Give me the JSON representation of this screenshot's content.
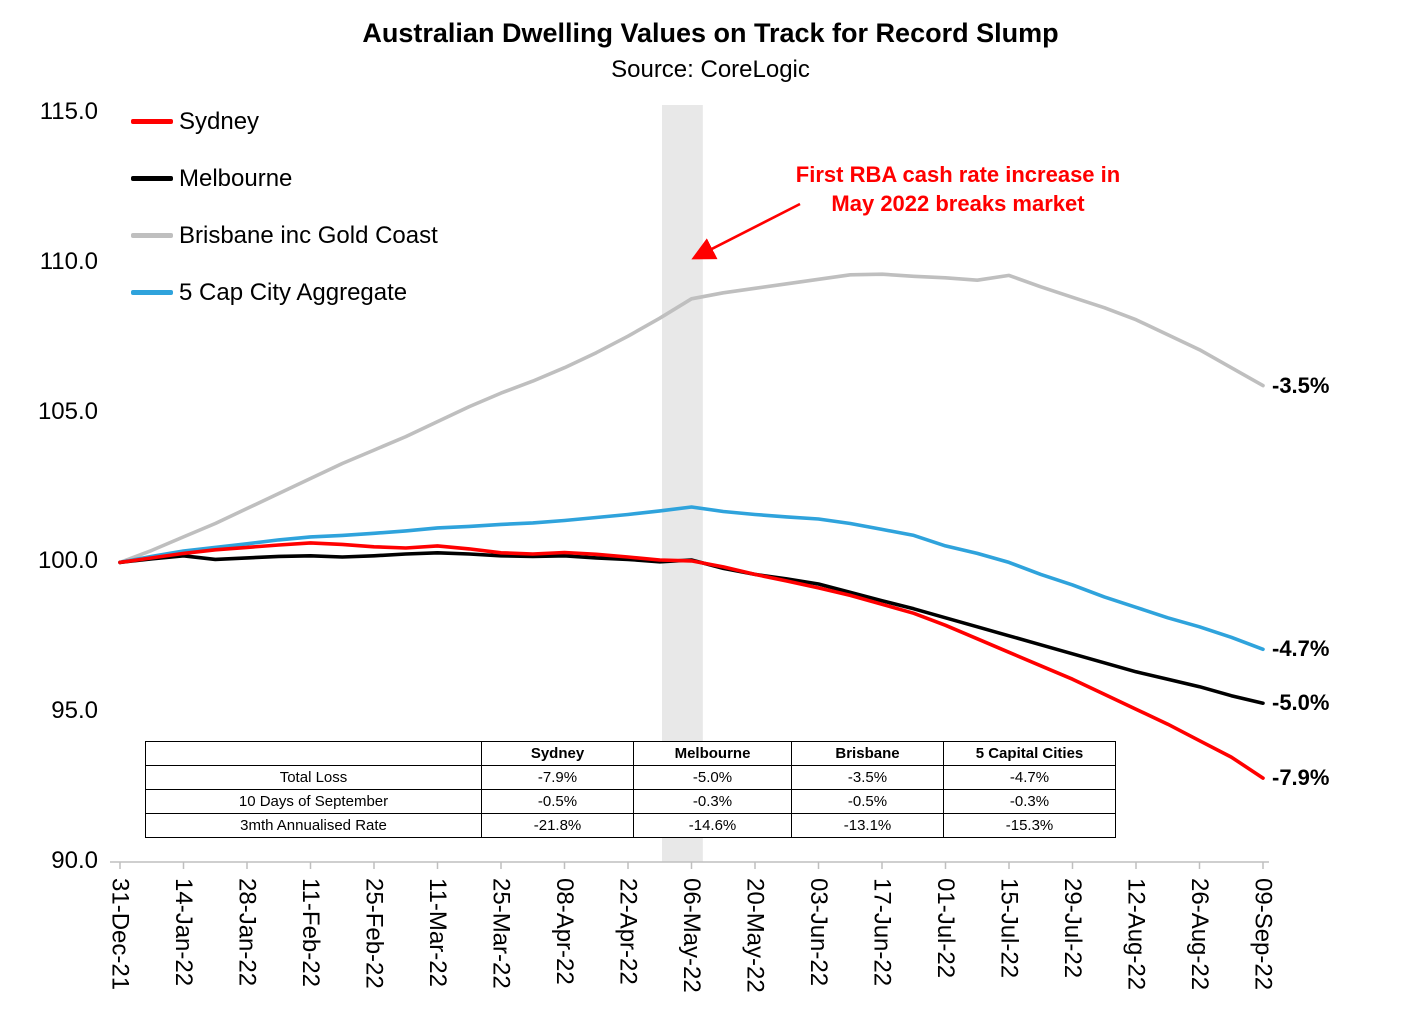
{
  "chart_data": {
    "type": "line",
    "title": "Australian Dwelling Values on Track for Record Slump",
    "source": "Source: CoreLogic",
    "annotation": {
      "line1": "First RBA cash rate increase in",
      "line2": "May 2022 breaks market",
      "color": "#FF0000"
    },
    "ylim": [
      90,
      115
    ],
    "y_ticks": [
      115,
      110,
      105,
      100,
      95,
      90
    ],
    "y_tick_labels": [
      "115.0",
      "110.0",
      "105.0",
      "100.0",
      "95.0",
      "90.0"
    ],
    "x_tick_days": [
      0,
      14,
      28,
      42,
      56,
      70,
      84,
      98,
      112,
      126,
      140,
      154,
      168,
      182,
      196,
      210,
      224,
      238,
      252
    ],
    "x_tick_labels": [
      "31-Dec-21",
      "14-Jan-22",
      "28-Jan-22",
      "11-Feb-22",
      "25-Feb-22",
      "11-Mar-22",
      "25-Mar-22",
      "08-Apr-22",
      "22-Apr-22",
      "06-May-22",
      "20-May-22",
      "03-Jun-22",
      "17-Jun-22",
      "01-Jul-22",
      "15-Jul-22",
      "29-Jul-22",
      "12-Aug-22",
      "26-Aug-22",
      "09-Sep-22"
    ],
    "grid": false,
    "legend_position": "top-left",
    "highlight_band": {
      "center_day": 124,
      "width_days": 9,
      "color": "#E8E8E8"
    },
    "x_days": [
      0,
      7,
      14,
      21,
      28,
      35,
      42,
      49,
      56,
      63,
      70,
      77,
      84,
      91,
      98,
      105,
      112,
      119,
      126,
      133,
      140,
      147,
      154,
      161,
      168,
      175,
      182,
      189,
      196,
      203,
      210,
      217,
      224,
      231,
      238,
      245,
      252
    ],
    "series": [
      {
        "name": "Sydney",
        "color": "#FF0000",
        "end_label": "-7.9%",
        "values": [
          100.0,
          100.15,
          100.3,
          100.42,
          100.5,
          100.58,
          100.65,
          100.6,
          100.52,
          100.48,
          100.55,
          100.45,
          100.32,
          100.28,
          100.33,
          100.27,
          100.18,
          100.08,
          100.05,
          99.85,
          99.6,
          99.38,
          99.15,
          98.9,
          98.6,
          98.3,
          97.9,
          97.45,
          97.0,
          96.55,
          96.1,
          95.6,
          95.1,
          94.6,
          94.05,
          93.5,
          92.8
        ]
      },
      {
        "name": "Melbourne",
        "color": "#000000",
        "end_label": "-5.0%",
        "values": [
          100.0,
          100.12,
          100.22,
          100.1,
          100.15,
          100.2,
          100.22,
          100.18,
          100.22,
          100.28,
          100.32,
          100.28,
          100.22,
          100.2,
          100.22,
          100.15,
          100.1,
          100.02,
          100.08,
          99.8,
          99.6,
          99.45,
          99.28,
          99.0,
          98.72,
          98.45,
          98.15,
          97.85,
          97.55,
          97.25,
          96.95,
          96.65,
          96.35,
          96.1,
          95.85,
          95.55,
          95.3
        ]
      },
      {
        "name": "Brisbane inc Gold Coast",
        "color": "#BFBFBF",
        "end_label": "-3.5%",
        "values": [
          100.0,
          100.4,
          100.85,
          101.3,
          101.8,
          102.3,
          102.8,
          103.3,
          103.75,
          104.2,
          104.7,
          105.2,
          105.65,
          106.05,
          106.5,
          107.0,
          107.55,
          108.15,
          108.8,
          109.0,
          109.15,
          109.3,
          109.45,
          109.6,
          109.62,
          109.55,
          109.5,
          109.42,
          109.58,
          109.2,
          108.85,
          108.5,
          108.1,
          107.6,
          107.1,
          106.5,
          105.9
        ]
      },
      {
        "name": "5 Cap City Aggregate",
        "color": "#2FA3DC",
        "end_label": "-4.7%",
        "values": [
          100.0,
          100.2,
          100.38,
          100.5,
          100.62,
          100.75,
          100.85,
          100.9,
          100.97,
          101.05,
          101.15,
          101.2,
          101.27,
          101.32,
          101.4,
          101.5,
          101.6,
          101.72,
          101.85,
          101.7,
          101.6,
          101.52,
          101.45,
          101.3,
          101.1,
          100.9,
          100.55,
          100.3,
          100.0,
          99.6,
          99.25,
          98.85,
          98.5,
          98.15,
          97.85,
          97.5,
          97.1
        ]
      }
    ]
  },
  "table": {
    "headers": [
      "",
      "Sydney",
      "Melbourne",
      "Brisbane",
      "5 Capital Cities"
    ],
    "rows": [
      {
        "label": "Total Loss",
        "values": [
          "-7.9%",
          "-5.0%",
          "-3.5%",
          "-4.7%"
        ]
      },
      {
        "label": "10 Days of September",
        "values": [
          "-0.5%",
          "-0.3%",
          "-0.5%",
          "-0.3%"
        ]
      },
      {
        "label": "3mth Annualised Rate",
        "values": [
          "-21.8%",
          "-14.6%",
          "-13.1%",
          "-15.3%"
        ]
      }
    ]
  }
}
